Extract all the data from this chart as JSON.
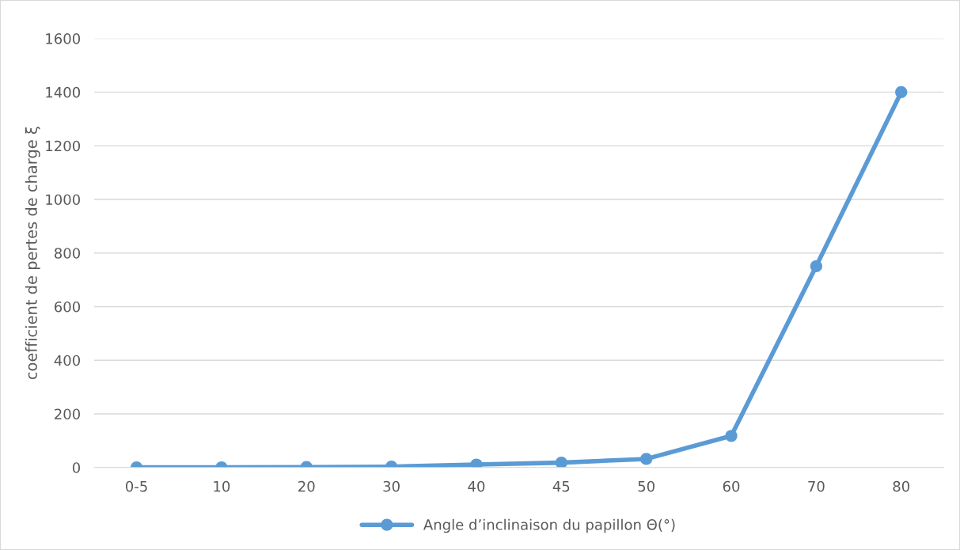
{
  "chart_data": {
    "type": "line",
    "categories": [
      "0-5",
      "10",
      "20",
      "30",
      "40",
      "45",
      "50",
      "60",
      "70",
      "80"
    ],
    "series": [
      {
        "name": "Angle d’inclinaison du papillon Θ(°)",
        "color": "#5b9bd5",
        "values": [
          0.3,
          0.5,
          1.5,
          3,
          11,
          18,
          32,
          118,
          751,
          1400
        ]
      }
    ],
    "ylabel": "coefficient de pertes de charge ξ",
    "ylim": [
      0,
      1600
    ],
    "yticks": [
      0,
      200,
      400,
      600,
      800,
      1000,
      1200,
      1400,
      1600
    ],
    "grid": "y",
    "legend": "bottom",
    "marker": "circle",
    "line_style": "solid"
  }
}
